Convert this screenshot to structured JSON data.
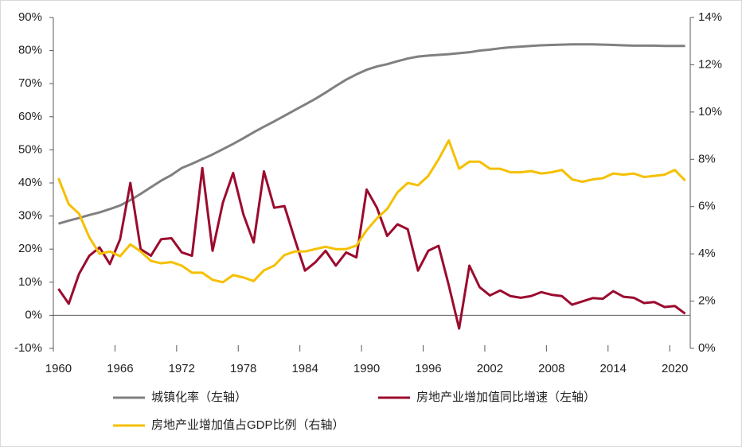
{
  "chart_data": {
    "type": "line",
    "x": [
      1960,
      1961,
      1962,
      1963,
      1964,
      1965,
      1966,
      1967,
      1968,
      1969,
      1970,
      1971,
      1972,
      1973,
      1974,
      1975,
      1976,
      1977,
      1978,
      1979,
      1980,
      1981,
      1982,
      1983,
      1984,
      1985,
      1986,
      1987,
      1988,
      1989,
      1990,
      1991,
      1992,
      1993,
      1994,
      1995,
      1996,
      1997,
      1998,
      1999,
      2000,
      2001,
      2002,
      2003,
      2004,
      2005,
      2006,
      2007,
      2008,
      2009,
      2010,
      2011,
      2012,
      2013,
      2014,
      2015,
      2016,
      2017,
      2018,
      2019,
      2020,
      2021
    ],
    "xlim": [
      1959.5,
      2021.5
    ],
    "xticks": [
      1960,
      1966,
      1972,
      1978,
      1984,
      1990,
      1996,
      2002,
      2008,
      2014,
      2020
    ],
    "ylim": [
      -10,
      90
    ],
    "yticks": [
      {
        "value": -10,
        "label": "-10%"
      },
      {
        "value": 0,
        "label": "0%"
      },
      {
        "value": 10,
        "label": "10%"
      },
      {
        "value": 20,
        "label": "20%"
      },
      {
        "value": 30,
        "label": "30%"
      },
      {
        "value": 40,
        "label": "40%"
      },
      {
        "value": 50,
        "label": "50%"
      },
      {
        "value": 60,
        "label": "60%"
      },
      {
        "value": 70,
        "label": "70%"
      },
      {
        "value": 80,
        "label": "80%"
      },
      {
        "value": 90,
        "label": "90%"
      }
    ],
    "y2lim": [
      0,
      14
    ],
    "y2ticks": [
      {
        "value": 0,
        "label": "0%"
      },
      {
        "value": 2,
        "label": "2%"
      },
      {
        "value": 4,
        "label": "4%"
      },
      {
        "value": 6,
        "label": "6%"
      },
      {
        "value": 8,
        "label": "8%"
      },
      {
        "value": 10,
        "label": "10%"
      },
      {
        "value": 12,
        "label": "12%"
      },
      {
        "value": 14,
        "label": "14%"
      }
    ],
    "series": [
      {
        "name": "城镇化率（左轴）",
        "color": "#808080",
        "axis": "y",
        "values": [
          27.7,
          28.6,
          29.4,
          30.3,
          31.1,
          32.1,
          33.2,
          34.8,
          36.7,
          38.7,
          40.7,
          42.4,
          44.5,
          45.8,
          47.2,
          48.6,
          50.2,
          51.8,
          53.5,
          55.3,
          57,
          58.6,
          60.3,
          62,
          63.7,
          65.4,
          67.3,
          69.3,
          71.2,
          72.8,
          74.2,
          75.2,
          75.9,
          76.8,
          77.6,
          78.2,
          78.5,
          78.7,
          78.9,
          79.2,
          79.5,
          80,
          80.3,
          80.7,
          81,
          81.2,
          81.4,
          81.6,
          81.7,
          81.8,
          81.9,
          81.9,
          81.9,
          81.8,
          81.7,
          81.6,
          81.5,
          81.5,
          81.5,
          81.4,
          81.4,
          81.4
        ]
      },
      {
        "name": "房地产业增加值同比增速（左轴）",
        "color": "#9b0b2e",
        "axis": "y",
        "values": [
          8,
          3.5,
          12.5,
          18,
          20.5,
          15.5,
          23,
          40,
          20,
          18,
          23,
          23.3,
          19,
          18,
          44.5,
          19.5,
          34,
          43,
          30.5,
          22,
          43.5,
          32.5,
          33,
          23,
          13.5,
          16,
          19.5,
          15,
          19,
          17.5,
          38,
          32.5,
          24,
          27.5,
          26,
          13.5,
          19.5,
          21,
          9,
          -4,
          15,
          8.5,
          6,
          7.5,
          5.8,
          5.3,
          5.8,
          7,
          6.2,
          5.8,
          3.2,
          4.2,
          5.2,
          5,
          7.3,
          5.6,
          5.3,
          3.7,
          4,
          2.5,
          2.8,
          0.5
        ]
      },
      {
        "name": "房地产业增加值占GDP比例（右轴）",
        "color": "#f5c000",
        "axis": "y2",
        "values": [
          7.2,
          6.1,
          5.7,
          4.7,
          4.0,
          4.1,
          3.9,
          4.4,
          4.1,
          3.7,
          3.6,
          3.65,
          3.5,
          3.2,
          3.2,
          2.9,
          2.8,
          3.1,
          3.0,
          2.85,
          3.3,
          3.5,
          3.95,
          4.1,
          4.1,
          4.2,
          4.3,
          4.2,
          4.2,
          4.35,
          5.0,
          5.5,
          5.9,
          6.6,
          7.0,
          6.9,
          7.3,
          8.0,
          8.8,
          7.6,
          7.9,
          7.9,
          7.6,
          7.6,
          7.45,
          7.45,
          7.5,
          7.4,
          7.45,
          7.55,
          7.15,
          7.05,
          7.15,
          7.2,
          7.4,
          7.35,
          7.4,
          7.25,
          7.3,
          7.35,
          7.55,
          7.1
        ]
      }
    ]
  }
}
